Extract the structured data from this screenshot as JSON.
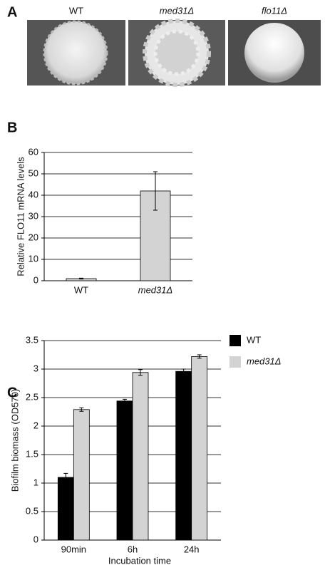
{
  "panels": [
    "A",
    "B",
    "C"
  ],
  "colony_labels": [
    "WT",
    "med31Δ",
    "flo11Δ"
  ],
  "chart_data": [
    {
      "type": "bar",
      "ylabel": "Relative FLO11 mRNA levels",
      "categories": [
        "WT",
        "med31Δ"
      ],
      "series": [
        {
          "color": "#d3d3d3",
          "values": [
            1,
            42
          ],
          "errors": [
            0.2,
            9
          ]
        }
      ],
      "ylim": [
        0,
        60
      ],
      "yticks": [
        0,
        10,
        20,
        30,
        40,
        50,
        60
      ],
      "grid": true
    },
    {
      "type": "bar",
      "ylabel": "Biofilm biomass (OD570)",
      "xlabel": "Incubation time",
      "categories": [
        "90min",
        "6h",
        "24h"
      ],
      "series": [
        {
          "name": "WT",
          "color": "#000000",
          "values": [
            1.1,
            2.44,
            2.96
          ],
          "errors": [
            0.07,
            0.03,
            0.04
          ]
        },
        {
          "name": "med31Δ",
          "color": "#d3d3d3",
          "values": [
            2.29,
            2.94,
            3.22
          ],
          "errors": [
            0.03,
            0.05,
            0.03
          ]
        }
      ],
      "ylim": [
        0,
        3.5
      ],
      "yticks": [
        0,
        0.5,
        1,
        1.5,
        2,
        2.5,
        3,
        3.5
      ],
      "grid": true,
      "legend": "right"
    }
  ]
}
